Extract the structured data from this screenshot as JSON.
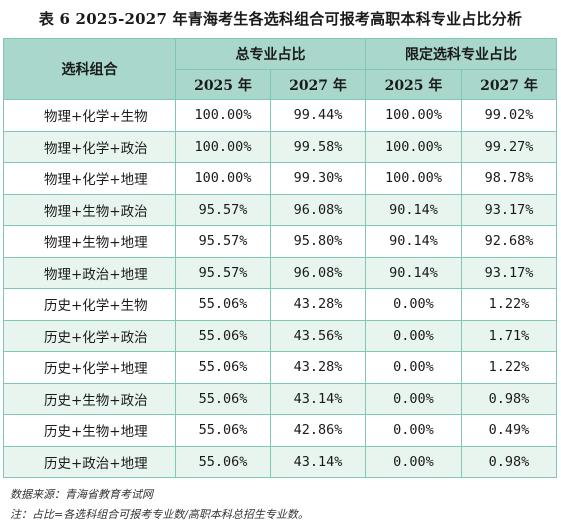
{
  "title": "表 6  2025-2027 年青海考生各选科组合可报考高职本科专业占比分析",
  "header": {
    "combo": "选科组合",
    "group1": "总专业占比",
    "group2": "限定选科专业占比",
    "y2025_a": "2025 年",
    "y2027_a": "2027 年",
    "y2025_b": "2025 年",
    "y2027_b": "2027 年"
  },
  "rows": [
    {
      "combo": "物理+化学+生物",
      "t2025": "100.00%",
      "t2027": "99.44%",
      "r2025": "100.00%",
      "r2027": "99.02%"
    },
    {
      "combo": "物理+化学+政治",
      "t2025": "100.00%",
      "t2027": "99.58%",
      "r2025": "100.00%",
      "r2027": "99.27%"
    },
    {
      "combo": "物理+化学+地理",
      "t2025": "100.00%",
      "t2027": "99.30%",
      "r2025": "100.00%",
      "r2027": "98.78%"
    },
    {
      "combo": "物理+生物+政治",
      "t2025": "95.57%",
      "t2027": "96.08%",
      "r2025": "90.14%",
      "r2027": "93.17%"
    },
    {
      "combo": "物理+生物+地理",
      "t2025": "95.57%",
      "t2027": "95.80%",
      "r2025": "90.14%",
      "r2027": "92.68%"
    },
    {
      "combo": "物理+政治+地理",
      "t2025": "95.57%",
      "t2027": "96.08%",
      "r2025": "90.14%",
      "r2027": "93.17%"
    },
    {
      "combo": "历史+化学+生物",
      "t2025": "55.06%",
      "t2027": "43.28%",
      "r2025": "0.00%",
      "r2027": "1.22%"
    },
    {
      "combo": "历史+化学+政治",
      "t2025": "55.06%",
      "t2027": "43.56%",
      "r2025": "0.00%",
      "r2027": "1.71%"
    },
    {
      "combo": "历史+化学+地理",
      "t2025": "55.06%",
      "t2027": "43.28%",
      "r2025": "0.00%",
      "r2027": "1.22%"
    },
    {
      "combo": "历史+生物+政治",
      "t2025": "55.06%",
      "t2027": "43.14%",
      "r2025": "0.00%",
      "r2027": "0.98%"
    },
    {
      "combo": "历史+生物+地理",
      "t2025": "55.06%",
      "t2027": "42.86%",
      "r2025": "0.00%",
      "r2027": "0.49%"
    },
    {
      "combo": "历史+政治+地理",
      "t2025": "55.06%",
      "t2027": "43.14%",
      "r2025": "0.00%",
      "r2027": "0.98%"
    }
  ],
  "notes": {
    "source": "数据来源：青海省教育考试网",
    "note": "注：占比=各选科组合可报考专业数/高职本科总招生专业数。"
  },
  "colors": {
    "header_bg": "#a9d7cc",
    "stripe_bg": "#e8f5ee",
    "border": "#7fc7b6"
  }
}
